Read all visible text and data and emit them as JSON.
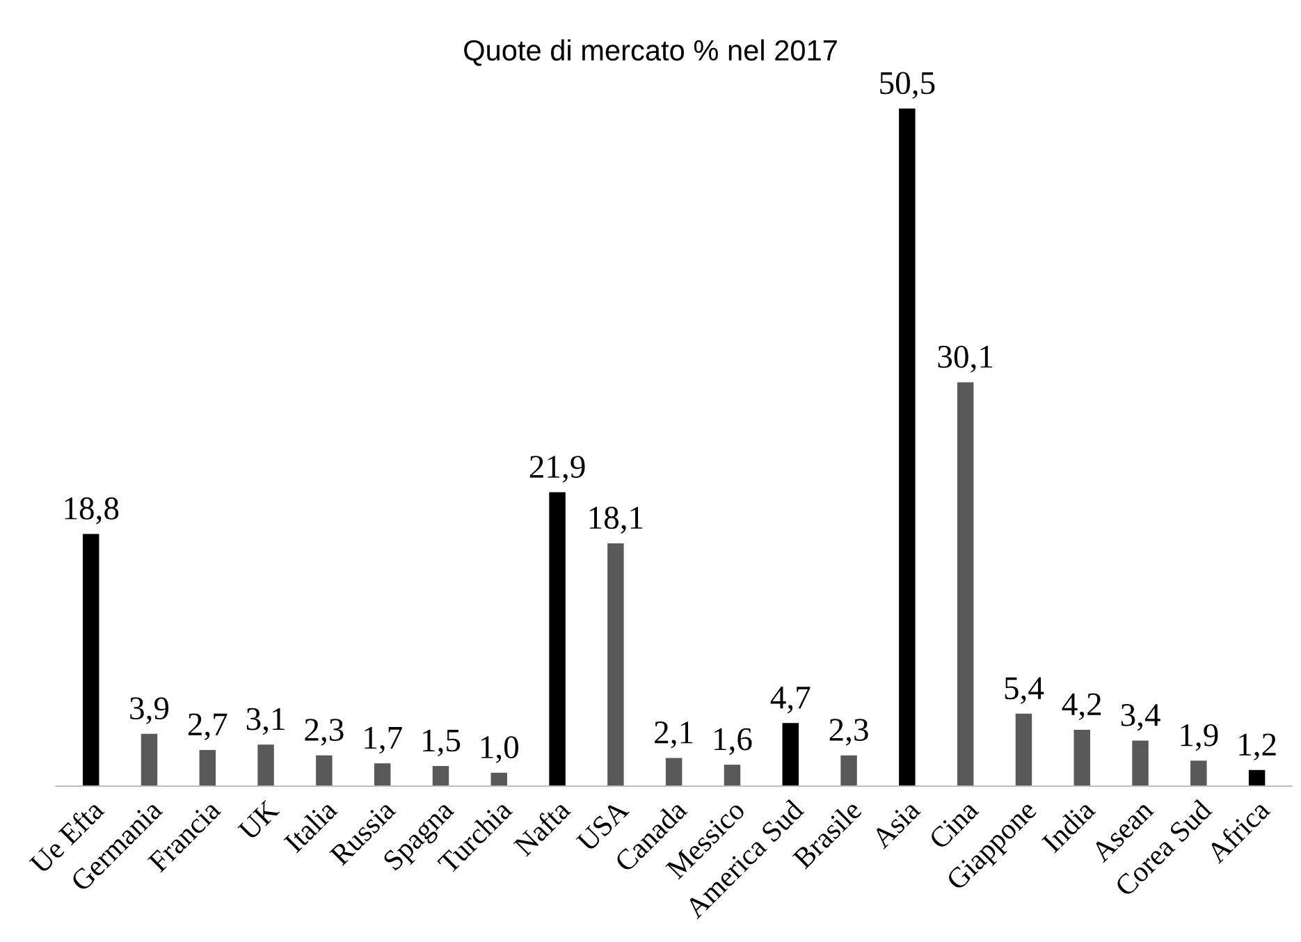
{
  "chart_data": {
    "type": "bar",
    "title": "Quote di mercato % nel 2017",
    "categories": [
      "Ue Efta",
      "Germania",
      "Francia",
      "UK",
      "Italia",
      "Russia",
      "Spagna",
      "Turchia",
      "Nafta",
      "USA",
      "Canada",
      "Messico",
      "America Sud",
      "Brasile",
      "Asia",
      "Cina",
      "Giappone",
      "India",
      "Asean",
      "Corea Sud",
      "Africa"
    ],
    "values": [
      18.8,
      3.9,
      2.7,
      3.1,
      2.3,
      1.7,
      1.5,
      1.0,
      21.9,
      18.1,
      2.1,
      1.6,
      4.7,
      2.3,
      50.5,
      30.1,
      5.4,
      4.2,
      3.4,
      1.9,
      1.2
    ],
    "value_labels": [
      "18,8",
      "3,9",
      "2,7",
      "3,1",
      "2,3",
      "1,7",
      "1,5",
      "1,0",
      "21,9",
      "18,1",
      "2,1",
      "1,6",
      "4,7",
      "2,3",
      "50,5",
      "30,1",
      "5,4",
      "4,2",
      "3,4",
      "1,9",
      "1,2"
    ],
    "colors": [
      "#000000",
      "#595959",
      "#595959",
      "#595959",
      "#595959",
      "#595959",
      "#595959",
      "#595959",
      "#000000",
      "#595959",
      "#595959",
      "#595959",
      "#000000",
      "#595959",
      "#000000",
      "#595959",
      "#595959",
      "#595959",
      "#595959",
      "#595959",
      "#000000"
    ],
    "grid": false,
    "legend": false
  }
}
